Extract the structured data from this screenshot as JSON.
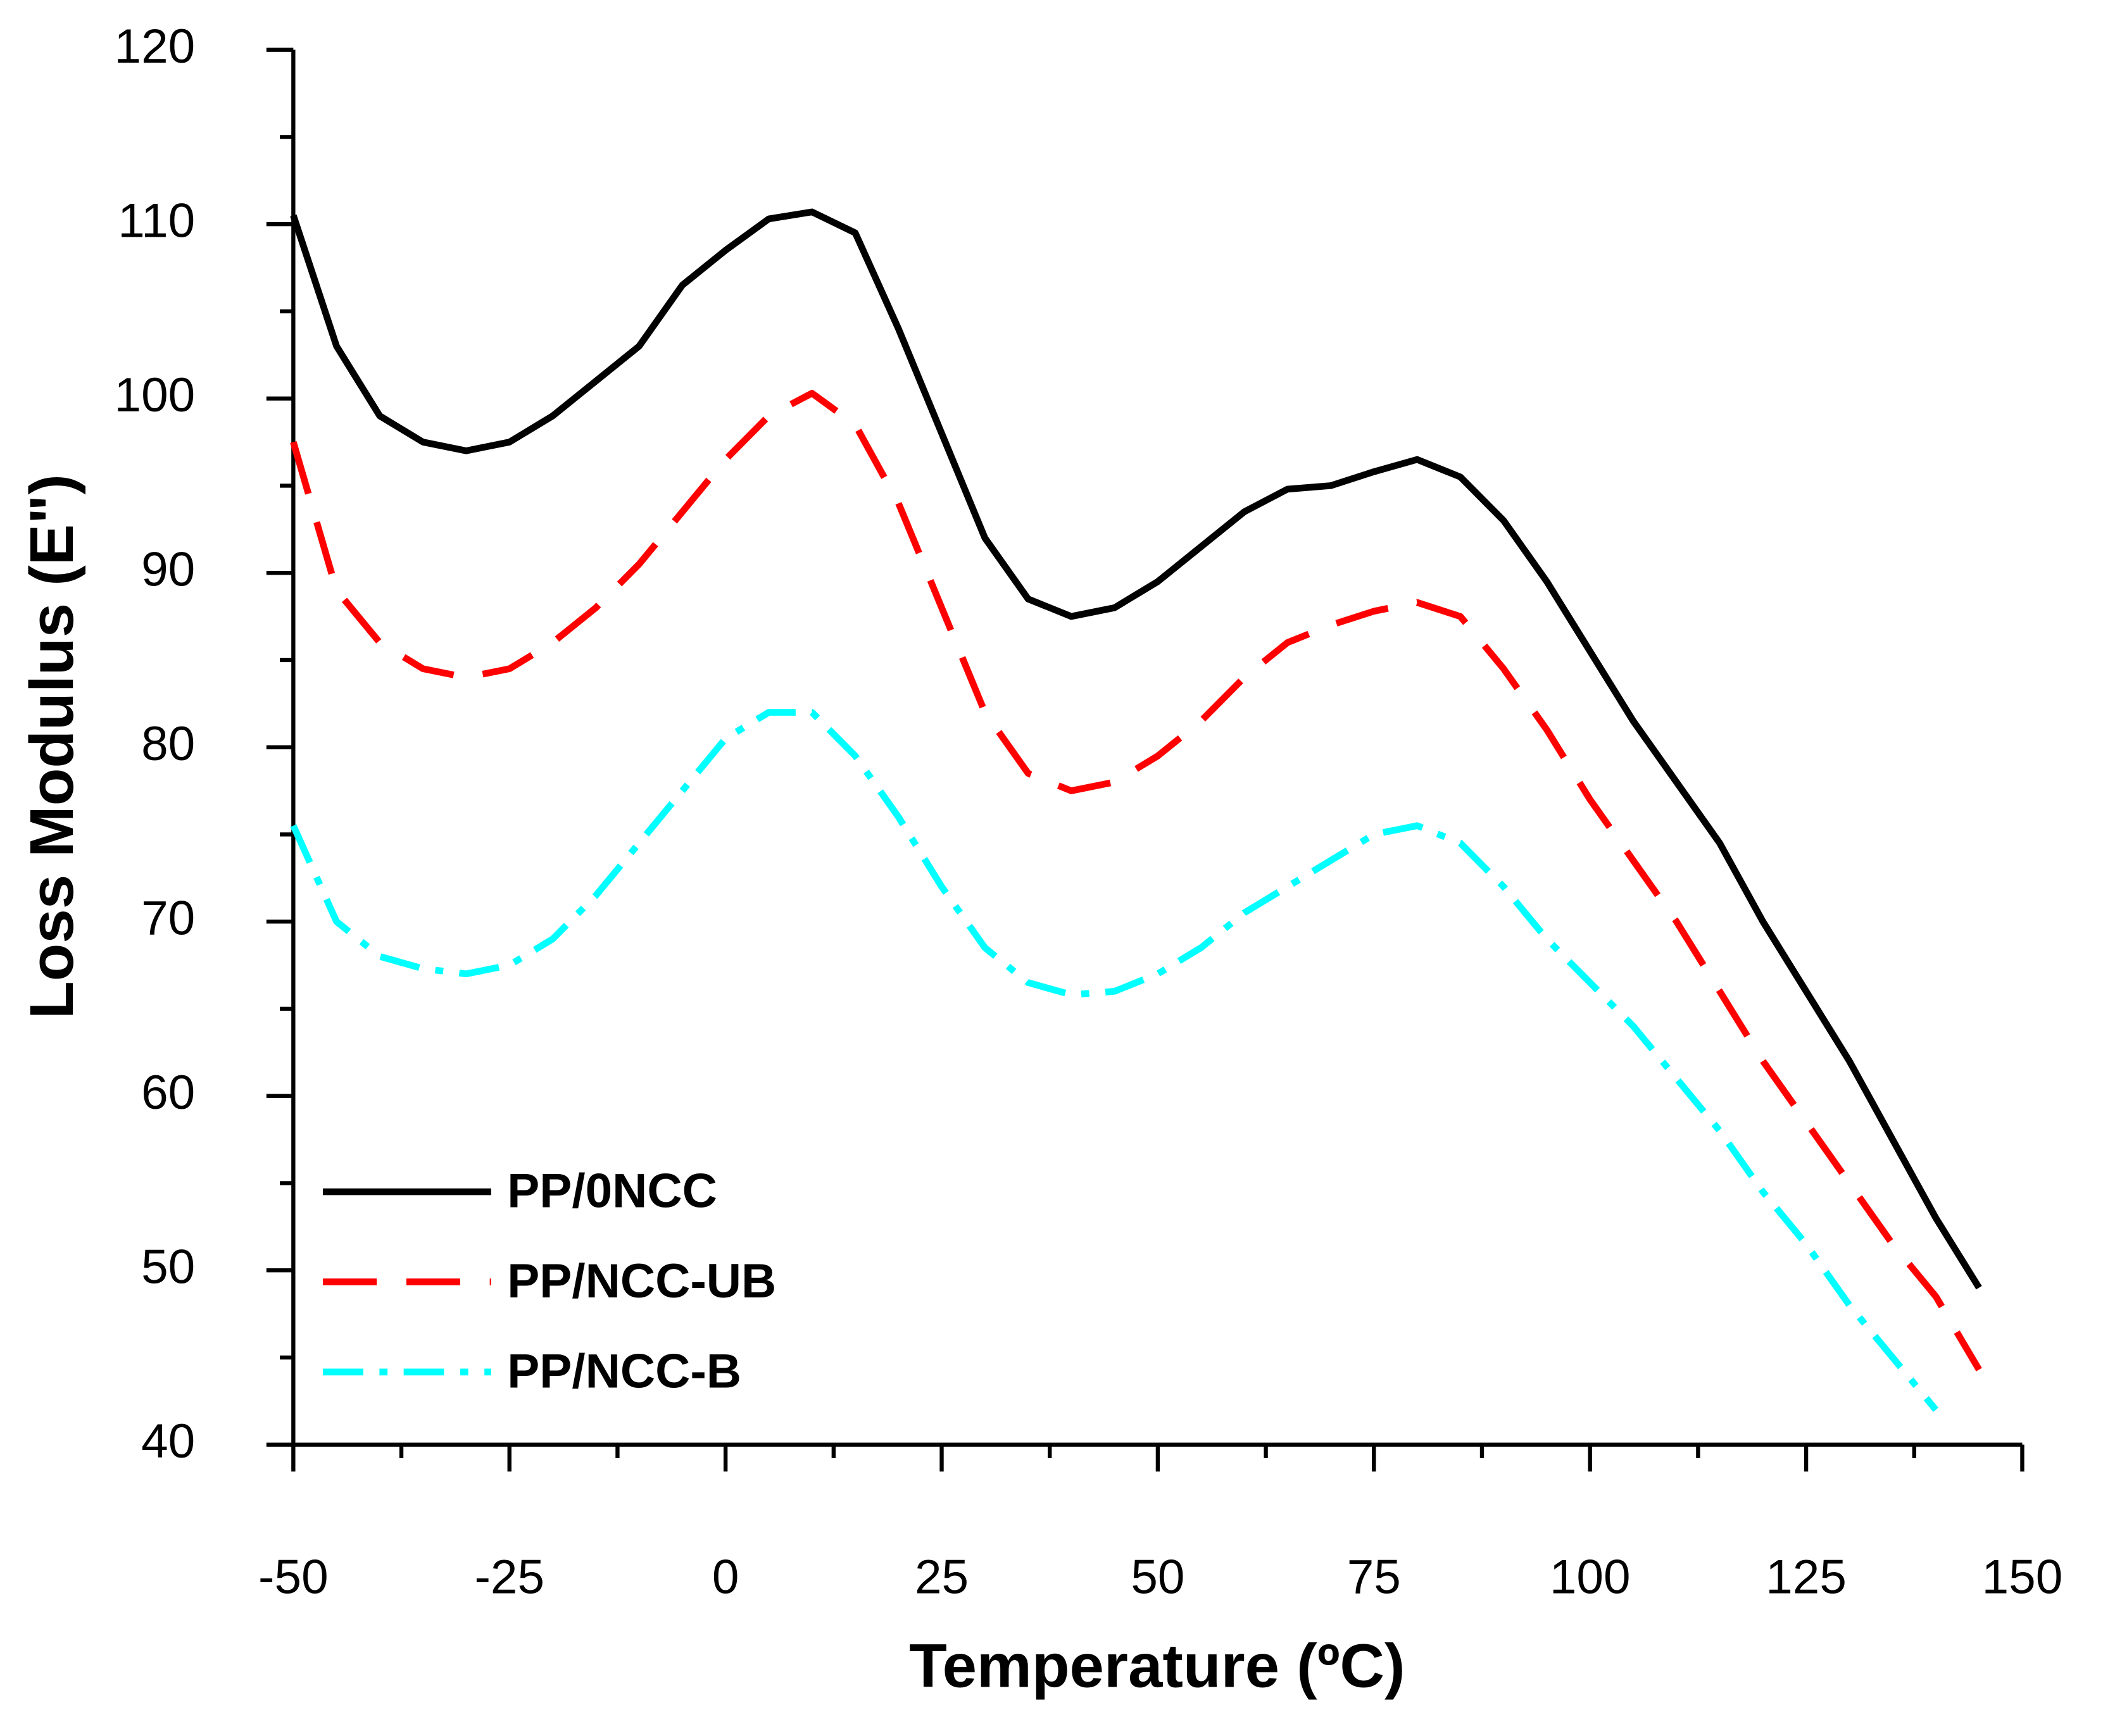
{
  "chart_data": {
    "type": "line",
    "x_label": "Temperature (ºC)",
    "y_label": "Loss Modulus (E\")",
    "xlim": [
      -50,
      150
    ],
    "ylim": [
      40,
      120
    ],
    "xticks": [
      -50,
      -25,
      0,
      25,
      50,
      75,
      100,
      125,
      150
    ],
    "yticks": [
      40,
      50,
      60,
      70,
      80,
      90,
      100,
      110,
      120
    ],
    "xminor_ticks": [
      -37.5,
      -12.5,
      12.5,
      37.5,
      62.5,
      87.5,
      112.5,
      137.5
    ],
    "yminor_ticks": [
      45,
      55,
      65,
      75,
      85,
      95,
      105,
      115
    ],
    "legend": "lower left",
    "x": [
      -50,
      -45,
      -40,
      -35,
      -30,
      -25,
      -20,
      -15,
      -10,
      -5,
      0,
      5,
      10,
      15,
      20,
      25,
      30,
      35,
      40,
      45,
      50,
      55,
      60,
      65,
      70,
      75,
      80,
      85,
      90,
      95,
      100,
      105,
      110,
      115,
      120,
      125,
      130,
      135,
      140,
      145
    ],
    "series": [
      {
        "name": "PP/0NCC",
        "color": "#000000",
        "dash": "solid",
        "values": [
          110.5,
          103,
          99,
          97.5,
          97,
          97.5,
          99,
          101,
          103,
          106.5,
          108.5,
          110.3,
          110.7,
          109.5,
          104,
          98,
          92,
          88.5,
          87.5,
          88,
          89.5,
          91.5,
          93.5,
          94.8,
          95,
          95.8,
          96.5,
          95.5,
          93,
          89.5,
          85.5,
          81.5,
          78,
          74.5,
          70,
          66,
          62,
          57.5,
          53,
          49
        ]
      },
      {
        "name": "PP/NCC-UB",
        "color": "#ff0000",
        "dash": "dashed",
        "values": [
          97.5,
          89,
          86,
          84.5,
          84,
          84.5,
          86,
          88,
          90.5,
          93.5,
          96.5,
          99,
          100.3,
          98.5,
          94,
          88,
          82,
          78.5,
          77.5,
          78,
          79.5,
          81.5,
          84,
          86,
          87,
          87.8,
          88.3,
          87.5,
          84.5,
          81,
          77,
          73.5,
          70,
          66,
          62,
          58.5,
          55,
          51.5,
          48.5,
          44.3
        ]
      },
      {
        "name": "PP/NCC-B",
        "color": "#00ffff",
        "dash": "dashdot",
        "values": [
          75.5,
          70,
          68,
          67.3,
          67,
          67.5,
          69,
          71.5,
          74.5,
          77.5,
          80.5,
          82,
          82,
          79.5,
          76,
          72,
          68.5,
          66.5,
          65.8,
          66,
          67,
          68.5,
          70.5,
          72,
          73.5,
          75,
          75.5,
          74.5,
          72,
          69,
          66.5,
          64,
          61,
          58,
          54.5,
          51.5,
          48,
          45,
          42,
          null
        ]
      }
    ]
  }
}
